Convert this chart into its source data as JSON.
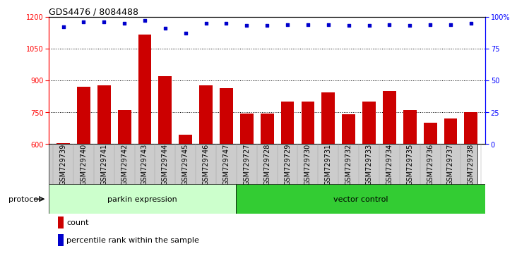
{
  "title": "GDS4476 / 8084488",
  "samples": [
    "GSM729739",
    "GSM729740",
    "GSM729741",
    "GSM729742",
    "GSM729743",
    "GSM729744",
    "GSM729745",
    "GSM729746",
    "GSM729747",
    "GSM729727",
    "GSM729728",
    "GSM729729",
    "GSM729730",
    "GSM729731",
    "GSM729732",
    "GSM729733",
    "GSM729734",
    "GSM729735",
    "GSM729736",
    "GSM729737",
    "GSM729738"
  ],
  "counts": [
    605,
    870,
    878,
    762,
    1115,
    920,
    645,
    878,
    865,
    745,
    745,
    800,
    800,
    843,
    742,
    800,
    850,
    760,
    700,
    720,
    750
  ],
  "percentile_ranks": [
    92,
    96,
    96,
    95,
    97,
    91,
    87,
    95,
    95,
    93,
    93,
    94,
    94,
    94,
    93,
    93,
    94,
    93,
    94,
    94,
    95
  ],
  "parkin_count": 9,
  "vector_count": 12,
  "ylim_left": [
    600,
    1200
  ],
  "ylim_right": [
    0,
    100
  ],
  "yticks_left": [
    600,
    750,
    900,
    1050,
    1200
  ],
  "yticks_right": [
    0,
    25,
    50,
    75,
    100
  ],
  "bar_color": "#cc0000",
  "dot_color": "#0000cc",
  "parkin_bg": "#ccffcc",
  "vector_bg": "#33cc33",
  "header_bg": "#cccccc",
  "grid_color": "#000000",
  "protocol_label": "protocol",
  "parkin_label": "parkin expression",
  "vector_label": "vector control",
  "legend_count": "count",
  "legend_pct": "percentile rank within the sample",
  "title_fontsize": 9,
  "tick_fontsize": 7,
  "label_fontsize": 8
}
